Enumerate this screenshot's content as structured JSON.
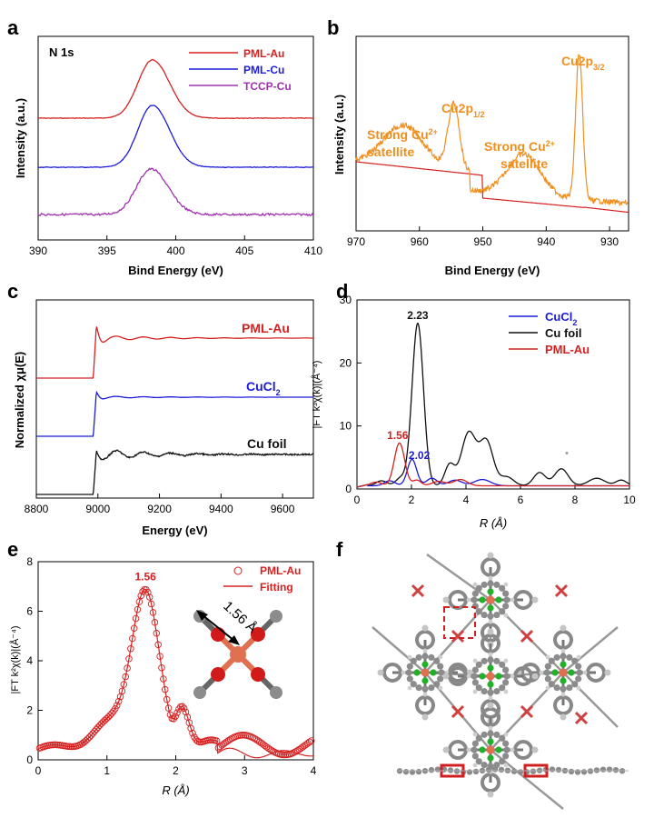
{
  "panel_letters": [
    "a",
    "b",
    "c",
    "d",
    "e",
    "f"
  ],
  "colors": {
    "red": "#d62020",
    "blue": "#1c1cd8",
    "purple": "#a030b0",
    "orange": "#ef8f1e",
    "black": "#111111",
    "gray": "#8a8a8a",
    "green": "#22b02a",
    "copper": "#e07050"
  },
  "chart_data": [
    {
      "id": "a",
      "type": "line",
      "title": "N 1s",
      "xlabel": "Bind Energy (eV)",
      "ylabel": "Intensity (a.u.)",
      "xlim": [
        390,
        410
      ],
      "xticks": [
        "390",
        "395",
        "400",
        "405",
        "410"
      ],
      "series": [
        {
          "name": "PML-Au",
          "color": "#d62020",
          "baseline": 130,
          "peak_center": 398.3,
          "peak_height": 64
        },
        {
          "name": "PML-Cu",
          "color": "#1c1cd8",
          "baseline": 184,
          "peak_center": 398.3,
          "peak_height": 68
        },
        {
          "name": "TCCP-Cu",
          "color": "#a030b0",
          "baseline": 236,
          "peak_center": 398.2,
          "peak_height": 50
        }
      ]
    },
    {
      "id": "b",
      "type": "line",
      "xlabel": "Bind Energy (eV)",
      "ylabel": "Intensity (a.u.)",
      "xlim": [
        970,
        927
      ],
      "xticks": [
        "970",
        "960",
        "950",
        "940",
        "930"
      ],
      "annotations": [
        {
          "text": "Cu2p",
          "sub": "3/2",
          "at": 934.5
        },
        {
          "text": "Cu2p",
          "sub": "1/2",
          "at": 954.5
        },
        {
          "text": "Strong Cu",
          "sup": "2+",
          "line2": "satellite",
          "at": 962
        },
        {
          "text": "Strong Cu",
          "sup": "2+",
          "line2": "satellite",
          "at": 943
        }
      ],
      "peaks": [
        {
          "center": 934.8,
          "height": 160
        },
        {
          "center": 954.6,
          "height": 72
        },
        {
          "center": 943.5,
          "height": 45
        },
        {
          "center": 962.5,
          "height": 45
        }
      ]
    },
    {
      "id": "c",
      "type": "line",
      "xlabel": "Energy (eV)",
      "ylabel": "Normalized χμ(E)",
      "xlim": [
        8800,
        9700
      ],
      "xticks": [
        "8800",
        "9000",
        "9200",
        "9400",
        "9600"
      ],
      "edge_energy": 8985,
      "series": [
        {
          "name": "PML-Au",
          "color": "#d62020"
        },
        {
          "name": "CuCl",
          "sub": "2",
          "color": "#1c1cd8"
        },
        {
          "name": "Cu foil",
          "color": "#111111"
        }
      ]
    },
    {
      "id": "d",
      "type": "line",
      "xlabel": "R (Å)",
      "ylabel": "|FT k³χ(k)|(Å⁻⁴)",
      "xlim": [
        0,
        10
      ],
      "ylim": [
        0,
        30
      ],
      "xticks": [
        "0",
        "2",
        "4",
        "6",
        "8",
        "10"
      ],
      "yticks": [
        "0",
        "10",
        "20",
        "30"
      ],
      "series": [
        {
          "name": "CuCl",
          "sub": "2",
          "color": "#1c1cd8",
          "peak": 2.02,
          "peak_value": 4.2
        },
        {
          "name": "Cu foil",
          "color": "#111111",
          "peak": 2.23,
          "peak_value": 25.8
        },
        {
          "name": "PML-Au",
          "color": "#d62020",
          "peak": 1.56,
          "peak_value": 6.8
        }
      ],
      "peak_labels": [
        {
          "text": "2.23",
          "x": 2.23,
          "y": 25.8,
          "color": "#111111"
        },
        {
          "text": "1.56",
          "x": 1.56,
          "y": 6.8,
          "color": "#d62020"
        },
        {
          "text": "2.02",
          "x": 2.02,
          "y": 4.2,
          "color": "#1c1cd8"
        }
      ]
    },
    {
      "id": "e",
      "type": "line",
      "xlabel": "R (Å)",
      "ylabel": "|FT k²χ(k)|(Å⁻⁴)",
      "xlim": [
        0,
        4
      ],
      "ylim": [
        0,
        8
      ],
      "xticks": [
        "0",
        "1",
        "2",
        "3",
        "4"
      ],
      "yticks": [
        "0",
        "2",
        "4",
        "6",
        "8"
      ],
      "series": [
        {
          "name": "PML-Au",
          "style": "circles",
          "color": "#d62020"
        },
        {
          "name": "Fitting",
          "style": "line",
          "color": "#d62020"
        }
      ],
      "peak_label": {
        "text": "1.56",
        "x": 1.56,
        "y": 6.95
      },
      "inset_label": "1.56 Å"
    }
  ]
}
